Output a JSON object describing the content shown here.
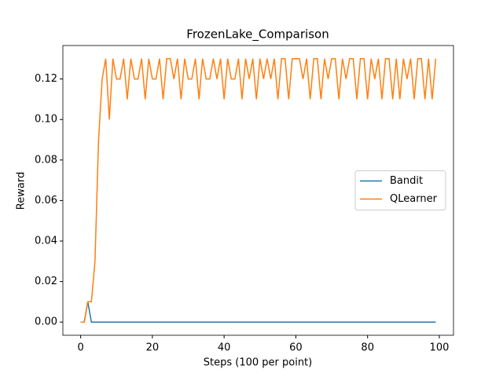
{
  "chart_data": {
    "type": "line",
    "title": "FrozenLake_Comparison",
    "xlabel": "Steps (100 per point)",
    "ylabel": "Reward",
    "x": [
      0,
      1,
      2,
      3,
      4,
      5,
      6,
      7,
      8,
      9,
      10,
      11,
      12,
      13,
      14,
      15,
      16,
      17,
      18,
      19,
      20,
      21,
      22,
      23,
      24,
      25,
      26,
      27,
      28,
      29,
      30,
      31,
      32,
      33,
      34,
      35,
      36,
      37,
      38,
      39,
      40,
      41,
      42,
      43,
      44,
      45,
      46,
      47,
      48,
      49,
      50,
      51,
      52,
      53,
      54,
      55,
      56,
      57,
      58,
      59,
      60,
      61,
      62,
      63,
      64,
      65,
      66,
      67,
      68,
      69,
      70,
      71,
      72,
      73,
      74,
      75,
      76,
      77,
      78,
      79,
      80,
      81,
      82,
      83,
      84,
      85,
      86,
      87,
      88,
      89,
      90,
      91,
      92,
      93,
      94,
      95,
      96,
      97,
      98,
      99
    ],
    "series": [
      {
        "name": "Bandit",
        "color": "#1f77b4",
        "values": [
          0,
          0,
          0.01,
          0,
          0,
          0,
          0,
          0,
          0,
          0,
          0,
          0,
          0,
          0,
          0,
          0,
          0,
          0,
          0,
          0,
          0,
          0,
          0,
          0,
          0,
          0,
          0,
          0,
          0,
          0,
          0,
          0,
          0,
          0,
          0,
          0,
          0,
          0,
          0,
          0,
          0,
          0,
          0,
          0,
          0,
          0,
          0,
          0,
          0,
          0,
          0,
          0,
          0,
          0,
          0,
          0,
          0,
          0,
          0,
          0,
          0,
          0,
          0,
          0,
          0,
          0,
          0,
          0,
          0,
          0,
          0,
          0,
          0,
          0,
          0,
          0,
          0,
          0,
          0,
          0,
          0,
          0,
          0,
          0,
          0,
          0,
          0,
          0,
          0,
          0,
          0,
          0,
          0,
          0,
          0,
          0,
          0,
          0,
          0,
          0
        ]
      },
      {
        "name": "QLearner",
        "color": "#ff7f0e",
        "values": [
          0,
          0,
          0.01,
          0.01,
          0.03,
          0.09,
          0.12,
          0.13,
          0.1,
          0.13,
          0.12,
          0.12,
          0.13,
          0.11,
          0.13,
          0.12,
          0.12,
          0.13,
          0.11,
          0.13,
          0.12,
          0.12,
          0.13,
          0.11,
          0.13,
          0.13,
          0.12,
          0.13,
          0.11,
          0.13,
          0.12,
          0.12,
          0.13,
          0.11,
          0.13,
          0.12,
          0.12,
          0.13,
          0.12,
          0.13,
          0.11,
          0.13,
          0.12,
          0.12,
          0.13,
          0.11,
          0.13,
          0.12,
          0.13,
          0.11,
          0.13,
          0.12,
          0.13,
          0.12,
          0.13,
          0.11,
          0.13,
          0.13,
          0.11,
          0.13,
          0.13,
          0.13,
          0.12,
          0.13,
          0.11,
          0.13,
          0.13,
          0.11,
          0.13,
          0.12,
          0.13,
          0.13,
          0.11,
          0.13,
          0.12,
          0.13,
          0.13,
          0.11,
          0.13,
          0.13,
          0.11,
          0.13,
          0.12,
          0.13,
          0.11,
          0.13,
          0.13,
          0.11,
          0.13,
          0.11,
          0.13,
          0.12,
          0.13,
          0.11,
          0.13,
          0.13,
          0.11,
          0.13,
          0.11,
          0.13
        ]
      }
    ],
    "xlim": [
      -4.95,
      103.95
    ],
    "ylim": [
      -0.0065,
      0.1365
    ],
    "xticks": [
      0,
      20,
      40,
      60,
      80,
      100
    ],
    "yticks": [
      {
        "value": 0,
        "label": "0.00"
      },
      {
        "value": 0.02,
        "label": "0.02"
      },
      {
        "value": 0.04,
        "label": "0.04"
      },
      {
        "value": 0.06,
        "label": "0.06"
      },
      {
        "value": 0.08,
        "label": "0.08"
      },
      {
        "value": 0.1,
        "label": "0.10"
      },
      {
        "value": 0.12,
        "label": "0.12"
      }
    ],
    "legend": "center right",
    "grid": false
  }
}
